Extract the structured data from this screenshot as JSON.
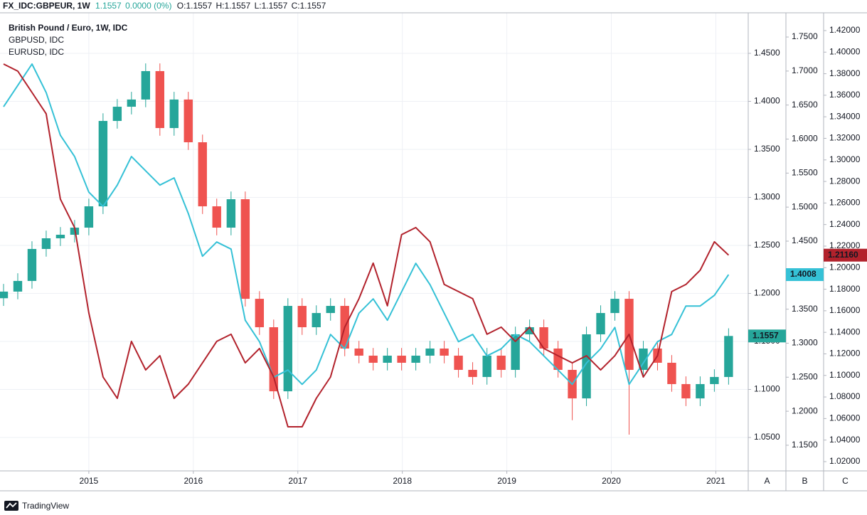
{
  "header": {
    "symbol": "FX_IDC:GBPEUR, 1W",
    "last": "1.1557",
    "change": "0.0000 (0%)",
    "open": "O:1.1557",
    "high": "H:1.1557",
    "low": "L:1.1557",
    "close": "C:1.1557"
  },
  "footer": {
    "brand": "TradingView"
  },
  "chart_data": {
    "type": "candlestick",
    "x": [
      2014.184,
      2014.32,
      2014.456,
      2014.592,
      2014.728,
      2014.864,
      2015.0,
      2015.136,
      2015.272,
      2015.408,
      2015.544,
      2015.68,
      2015.816,
      2015.952,
      2016.088,
      2016.224,
      2016.361,
      2016.497,
      2016.633,
      2016.769,
      2016.905,
      2017.041,
      2017.177,
      2017.313,
      2017.449,
      2017.585,
      2017.721,
      2017.857,
      2017.993,
      2018.129,
      2018.265,
      2018.401,
      2018.537,
      2018.673,
      2018.81,
      2018.946,
      2019.082,
      2019.218,
      2019.354,
      2019.49,
      2019.626,
      2019.762,
      2019.898,
      2020.034,
      2020.17,
      2020.306,
      2020.442,
      2020.578,
      2020.714,
      2020.85,
      2020.986,
      2021.122
    ],
    "xlim": [
      2014.15,
      2021.31
    ],
    "xticks": [
      2015,
      2016,
      2017,
      2018,
      2019,
      2020,
      2021
    ],
    "ylim": [
      1.0152,
      1.4922
    ],
    "yticks": [
      {
        "value": 1.05,
        "label": "1.0500"
      },
      {
        "value": 1.1,
        "label": "1.1000"
      },
      {
        "value": 1.15,
        "label": "1.1500"
      },
      {
        "value": 1.2,
        "label": "1.2000"
      },
      {
        "value": 1.25,
        "label": "1.2500"
      },
      {
        "value": 1.3,
        "label": "1.3000"
      },
      {
        "value": 1.35,
        "label": "1.3500"
      },
      {
        "value": 1.4,
        "label": "1.4000"
      },
      {
        "value": 1.45,
        "label": "1.4500"
      }
    ],
    "y2lim": [
      1.1123,
      1.7856
    ],
    "y2ticks": [
      {
        "value": 1.15,
        "label": "1.1500"
      },
      {
        "value": 1.2,
        "label": "1.2000"
      },
      {
        "value": 1.25,
        "label": "1.2500"
      },
      {
        "value": 1.3,
        "label": "1.3000"
      },
      {
        "value": 1.35,
        "label": "1.3500"
      },
      {
        "value": 1.4,
        "label": "1.4000"
      },
      {
        "value": 1.45,
        "label": "1.4500"
      },
      {
        "value": 1.5,
        "label": "1.5000"
      },
      {
        "value": 1.55,
        "label": "1.5500"
      },
      {
        "value": 1.6,
        "label": "1.6000"
      },
      {
        "value": 1.65,
        "label": "1.6500"
      },
      {
        "value": 1.7,
        "label": "1.7000"
      },
      {
        "value": 1.75,
        "label": "1.7500"
      }
    ],
    "y3lim": [
      1.0114,
      1.4365
    ],
    "y3ticks": [
      {
        "value": 1.02,
        "label": "1.02000"
      },
      {
        "value": 1.04,
        "label": "1.04000"
      },
      {
        "value": 1.06,
        "label": "1.06000"
      },
      {
        "value": 1.08,
        "label": "1.08000"
      },
      {
        "value": 1.1,
        "label": "1.10000"
      },
      {
        "value": 1.12,
        "label": "1.12000"
      },
      {
        "value": 1.14,
        "label": "1.14000"
      },
      {
        "value": 1.16,
        "label": "1.16000"
      },
      {
        "value": 1.18,
        "label": "1.18000"
      },
      {
        "value": 1.2,
        "label": "1.20000"
      },
      {
        "value": 1.22,
        "label": "1.22000"
      },
      {
        "value": 1.24,
        "label": "1.24000"
      },
      {
        "value": 1.26,
        "label": "1.26000"
      },
      {
        "value": 1.28,
        "label": "1.28000"
      },
      {
        "value": 1.3,
        "label": "1.30000"
      },
      {
        "value": 1.32,
        "label": "1.32000"
      },
      {
        "value": 1.34,
        "label": "1.34000"
      },
      {
        "value": 1.36,
        "label": "1.36000"
      },
      {
        "value": 1.38,
        "label": "1.38000"
      },
      {
        "value": 1.4,
        "label": "1.40000"
      },
      {
        "value": 1.42,
        "label": "1.42000"
      }
    ],
    "axis_names": [
      "A",
      "B",
      "C"
    ],
    "grid": true,
    "series": [
      {
        "name": "British Pound / Euro, 1W, IDC",
        "type": "candlestick",
        "axis": "y",
        "up_color": "#26a69a",
        "down_color": "#ef5350",
        "open": [
          1.195,
          1.2019,
          1.213,
          1.2463,
          1.2574,
          1.2611,
          1.2685,
          1.2907,
          1.3796,
          1.3944,
          1.4019,
          1.4315,
          1.3722,
          1.4019,
          1.3574,
          1.2907,
          1.2685,
          1.2981,
          1.1944,
          1.1648,
          1.0981,
          1.187,
          1.1648,
          1.1796,
          1.187,
          1.1426,
          1.1352,
          1.1278,
          1.1352,
          1.1278,
          1.1352,
          1.1426,
          1.1352,
          1.1204,
          1.113,
          1.1352,
          1.1204,
          1.1574,
          1.1648,
          1.1426,
          1.1204,
          1.0907,
          1.1574,
          1.1796,
          1.1944,
          1.1204,
          1.1426,
          1.1278,
          1.1056,
          1.0907,
          1.1056,
          1.113
        ],
        "high": [
          1.2099,
          1.221,
          1.2543,
          1.2654,
          1.2691,
          1.2765,
          1.2987,
          1.3876,
          1.4024,
          1.4099,
          1.4395,
          1.4395,
          1.4099,
          1.4099,
          1.3654,
          1.2987,
          1.3061,
          1.3061,
          1.2024,
          1.1728,
          1.195,
          1.195,
          1.1876,
          1.195,
          1.195,
          1.1506,
          1.1432,
          1.1432,
          1.1432,
          1.1432,
          1.1506,
          1.1506,
          1.1432,
          1.1284,
          1.1432,
          1.1432,
          1.1654,
          1.1728,
          1.1728,
          1.1506,
          1.1284,
          1.1654,
          1.1876,
          1.2024,
          1.2024,
          1.1506,
          1.1506,
          1.1358,
          1.1136,
          1.1136,
          1.121,
          1.1637
        ],
        "low": [
          1.187,
          1.1939,
          1.205,
          1.2383,
          1.2494,
          1.2531,
          1.2605,
          1.2827,
          1.3716,
          1.3864,
          1.3939,
          1.3642,
          1.3642,
          1.3494,
          1.2827,
          1.2605,
          1.2605,
          1.1864,
          1.1568,
          1.0901,
          1.0901,
          1.1568,
          1.1568,
          1.1716,
          1.1346,
          1.1272,
          1.1198,
          1.1198,
          1.1198,
          1.1198,
          1.1272,
          1.1272,
          1.1124,
          1.105,
          1.105,
          1.1124,
          1.1124,
          1.1494,
          1.1346,
          1.1124,
          1.068,
          1.0827,
          1.1494,
          1.1716,
          1.053,
          1.1124,
          1.1198,
          1.0976,
          1.0827,
          1.0827,
          1.0976,
          1.105
        ],
        "close": [
          1.2019,
          1.213,
          1.2463,
          1.2574,
          1.2611,
          1.2685,
          1.2907,
          1.3796,
          1.3944,
          1.4019,
          1.4315,
          1.3722,
          1.4019,
          1.3574,
          1.2907,
          1.2685,
          1.2981,
          1.1944,
          1.1648,
          1.0981,
          1.187,
          1.1648,
          1.1796,
          1.187,
          1.1426,
          1.1352,
          1.1278,
          1.1352,
          1.1278,
          1.1352,
          1.1426,
          1.1352,
          1.1204,
          1.113,
          1.1352,
          1.1204,
          1.1574,
          1.1648,
          1.1426,
          1.1204,
          1.0907,
          1.1574,
          1.1796,
          1.1944,
          1.1204,
          1.1426,
          1.1278,
          1.1056,
          1.0907,
          1.1056,
          1.113,
          1.1557
        ]
      },
      {
        "name": "GBPUSD, IDC",
        "type": "line",
        "axis": "y2",
        "color": "#35c1d6",
        "values": [
          1.6475,
          1.6789,
          1.7103,
          1.6684,
          1.6056,
          1.5743,
          1.522,
          1.501,
          1.5324,
          1.5743,
          1.5533,
          1.5324,
          1.5429,
          1.4906,
          1.4278,
          1.4487,
          1.4383,
          1.3337,
          1.3023,
          1.25,
          1.2605,
          1.2395,
          1.2605,
          1.3128,
          1.2918,
          1.3441,
          1.3651,
          1.3337,
          1.3755,
          1.4174,
          1.386,
          1.3441,
          1.3023,
          1.3128,
          1.2814,
          1.2918,
          1.3128,
          1.3023,
          1.2814,
          1.2605,
          1.2395,
          1.2709,
          1.2918,
          1.3232,
          1.2395,
          1.2709,
          1.3023,
          1.3128,
          1.3546,
          1.3546,
          1.3703,
          1.4008
        ]
      },
      {
        "name": "EURUSD, IDC",
        "type": "line",
        "axis": "y3",
        "color": "#b2222c",
        "last_label": "1.21160",
        "values": [
          1.389,
          1.3824,
          1.3626,
          1.3428,
          1.2636,
          1.2372,
          1.158,
          1.0985,
          1.0787,
          1.1316,
          1.1051,
          1.1183,
          1.0787,
          1.0919,
          1.1117,
          1.1316,
          1.1382,
          1.1117,
          1.125,
          1.0985,
          1.0523,
          1.0523,
          1.0787,
          1.0985,
          1.1448,
          1.1712,
          1.2042,
          1.1646,
          1.2306,
          1.2372,
          1.224,
          1.1844,
          1.1778,
          1.1712,
          1.1382,
          1.1448,
          1.1316,
          1.1448,
          1.125,
          1.1183,
          1.1117,
          1.1183,
          1.1051,
          1.1183,
          1.1382,
          1.0985,
          1.1183,
          1.1778,
          1.1844,
          1.1976,
          1.224,
          1.2116
        ]
      }
    ]
  }
}
